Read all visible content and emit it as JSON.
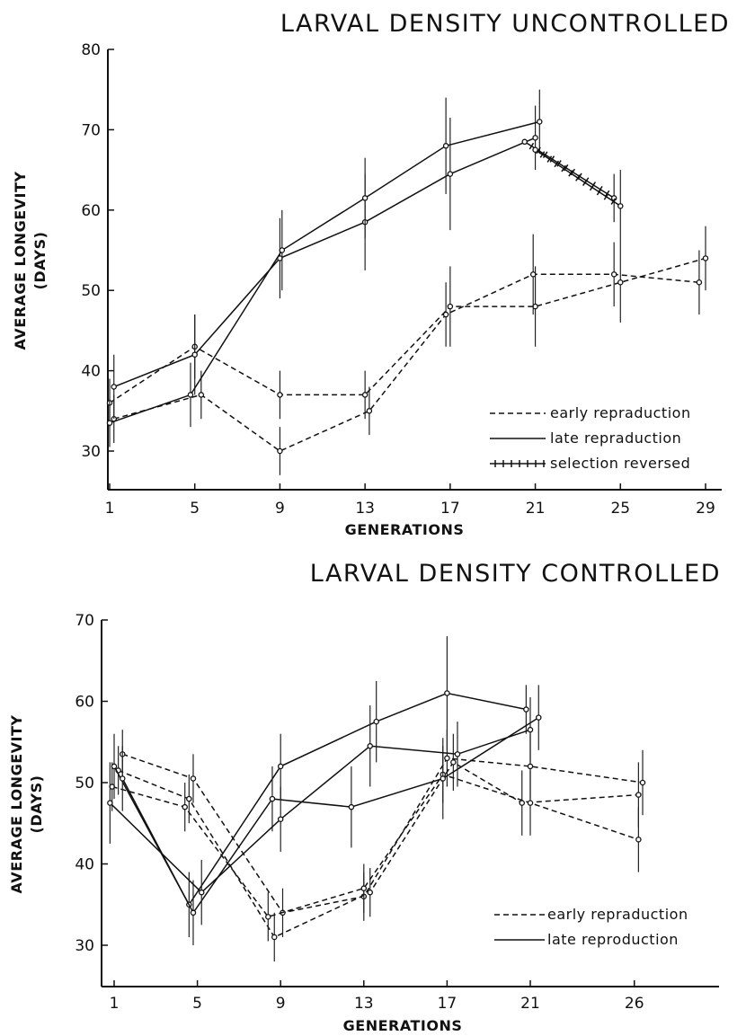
{
  "chart_data": [
    {
      "type": "line",
      "title": "LARVAL DENSITY UNCONTROLLED",
      "xlabel": "GENERATIONS",
      "ylabel": "AVERAGE LONGEVITY",
      "ylabel_unit": "(DAYS)",
      "xticks": [
        1,
        5,
        9,
        13,
        17,
        21,
        25,
        29
      ],
      "yticks": [
        30,
        40,
        50,
        60,
        70,
        80
      ],
      "xlim": [
        0.6,
        30.6
      ],
      "ylim": [
        25,
        80
      ],
      "grid": false,
      "legend_position": "bottom-right",
      "legend": [
        "early repraduction",
        "late repraduction",
        "selection reversed"
      ],
      "series": [
        {
          "group": "early repraduction",
          "style": "dashed",
          "points": [
            {
              "x": 1,
              "y": 36,
              "err": 3
            },
            {
              "x": 5,
              "y": 43,
              "err": 4
            },
            {
              "x": 9,
              "y": 37,
              "err": 3
            },
            {
              "x": 13,
              "y": 37,
              "err": 3
            },
            {
              "x": 17,
              "y": 48,
              "err": 5
            },
            {
              "x": 21,
              "y": 48,
              "err": 5
            },
            {
              "x": 25,
              "y": 51,
              "err": 5
            },
            {
              "x": 29,
              "y": 54,
              "err": 4
            }
          ]
        },
        {
          "group": "early repraduction",
          "style": "dashed",
          "points": [
            {
              "x": 1.2,
              "y": 34,
              "err": 3
            },
            {
              "x": 5.3,
              "y": 37,
              "err": 3
            },
            {
              "x": 9,
              "y": 30,
              "err": 3
            },
            {
              "x": 13.2,
              "y": 35,
              "err": 3
            },
            {
              "x": 16.8,
              "y": 47,
              "err": 4
            },
            {
              "x": 20.9,
              "y": 52,
              "err": 5
            },
            {
              "x": 24.7,
              "y": 52,
              "err": 4
            },
            {
              "x": 28.7,
              "y": 51,
              "err": 4
            }
          ]
        },
        {
          "group": "late repraduction",
          "style": "solid",
          "points": [
            {
              "x": 1.2,
              "y": 38,
              "err": 4
            },
            {
              "x": 5,
              "y": 42,
              "err": 5
            },
            {
              "x": 9,
              "y": 54,
              "err": 5
            },
            {
              "x": 13,
              "y": 58.5,
              "err": 6
            },
            {
              "x": 17,
              "y": 64.5,
              "err": 7
            },
            {
              "x": 21,
              "y": 69,
              "err": 4
            }
          ]
        },
        {
          "group": "late repraduction",
          "style": "solid",
          "points": [
            {
              "x": 1,
              "y": 33.5,
              "err": 3
            },
            {
              "x": 4.8,
              "y": 37,
              "err": 4
            },
            {
              "x": 9.1,
              "y": 55,
              "err": 5
            },
            {
              "x": 13,
              "y": 61.5,
              "err": 5
            },
            {
              "x": 16.8,
              "y": 68,
              "err": 6
            },
            {
              "x": 21.2,
              "y": 71,
              "err": 4
            }
          ]
        },
        {
          "group": "selection reversed",
          "style": "hatched",
          "points": [
            {
              "x": 20.5,
              "y": 68.5,
              "err": 0
            },
            {
              "x": 24.7,
              "y": 61.5,
              "err": 3
            }
          ]
        },
        {
          "group": "selection reversed",
          "style": "hatched",
          "points": [
            {
              "x": 21,
              "y": 67.5,
              "err": 0
            },
            {
              "x": 25,
              "y": 60.5,
              "err": 4.5
            }
          ]
        }
      ]
    },
    {
      "type": "line",
      "title": "LARVAL DENSITY CONTROLLED",
      "xlabel": "GENERATIONS",
      "ylabel": "AVERAGE LONGEVITY",
      "ylabel_unit": "(DAYS)",
      "xticks": [
        1,
        5,
        9,
        13,
        17,
        21,
        26
      ],
      "yticks": [
        30,
        40,
        50,
        60,
        70
      ],
      "xlim": [
        0.8,
        29.6
      ],
      "ylim": [
        25.5,
        70
      ],
      "grid": false,
      "legend_position": "bottom-right",
      "legend": [
        "early repraduction",
        "late reproduction"
      ],
      "series": [
        {
          "group": "early repraduction",
          "style": "dashed",
          "points": [
            {
              "x": 1.4,
              "y": 53.5,
              "err": 3
            },
            {
              "x": 4.8,
              "y": 50.5,
              "err": 3
            },
            {
              "x": 9.1,
              "y": 34,
              "err": 3
            },
            {
              "x": 13,
              "y": 36,
              "err": 3
            },
            {
              "x": 17,
              "y": 53,
              "err": 3.5
            },
            {
              "x": 21,
              "y": 52,
              "err": 4
            },
            {
              "x": 26.4,
              "y": 50,
              "err": 4
            }
          ]
        },
        {
          "group": "early repraduction",
          "style": "dashed",
          "points": [
            {
              "x": 1.2,
              "y": 51.5,
              "err": 3
            },
            {
              "x": 4.6,
              "y": 48,
              "err": 3
            },
            {
              "x": 8.7,
              "y": 31,
              "err": 3
            },
            {
              "x": 13.3,
              "y": 36.5,
              "err": 3
            },
            {
              "x": 17.3,
              "y": 52.5,
              "err": 3.5
            },
            {
              "x": 20.6,
              "y": 47.5,
              "err": 4
            },
            {
              "x": 26.2,
              "y": 48.5,
              "err": 4
            }
          ]
        },
        {
          "group": "early repraduction",
          "style": "dashed",
          "points": [
            {
              "x": 0.9,
              "y": 49.5,
              "err": 3
            },
            {
              "x": 4.4,
              "y": 47,
              "err": 3
            },
            {
              "x": 8.4,
              "y": 33.5,
              "err": 3
            },
            {
              "x": 13,
              "y": 37,
              "err": 3
            },
            {
              "x": 16.8,
              "y": 51,
              "err": 3.5
            },
            {
              "x": 21,
              "y": 47.5,
              "err": 4
            },
            {
              "x": 26.2,
              "y": 43,
              "err": 4
            }
          ]
        },
        {
          "group": "late reproduction",
          "style": "solid",
          "points": [
            {
              "x": 1,
              "y": 52,
              "err": 4
            },
            {
              "x": 4.6,
              "y": 35,
              "err": 4
            },
            {
              "x": 9,
              "y": 52,
              "err": 4
            },
            {
              "x": 13.6,
              "y": 57.5,
              "err": 5
            },
            {
              "x": 17,
              "y": 61,
              "err": 7
            },
            {
              "x": 20.8,
              "y": 59,
              "err": 3
            }
          ]
        },
        {
          "group": "late reproduction",
          "style": "solid",
          "points": [
            {
              "x": 1.4,
              "y": 50.5,
              "err": 4
            },
            {
              "x": 4.8,
              "y": 34,
              "err": 4
            },
            {
              "x": 8.6,
              "y": 48,
              "err": 4
            },
            {
              "x": 12.4,
              "y": 47,
              "err": 5
            },
            {
              "x": 16.8,
              "y": 50.5,
              "err": 5
            },
            {
              "x": 21.4,
              "y": 58,
              "err": 4
            }
          ]
        },
        {
          "group": "late reproduction",
          "style": "solid",
          "points": [
            {
              "x": 0.8,
              "y": 47.5,
              "err": 5
            },
            {
              "x": 5.2,
              "y": 36.5,
              "err": 4
            },
            {
              "x": 9,
              "y": 45.5,
              "err": 4
            },
            {
              "x": 13.3,
              "y": 54.5,
              "err": 5
            },
            {
              "x": 17.5,
              "y": 53.5,
              "err": 4
            },
            {
              "x": 21,
              "y": 56.5,
              "err": 4
            }
          ]
        }
      ]
    }
  ]
}
